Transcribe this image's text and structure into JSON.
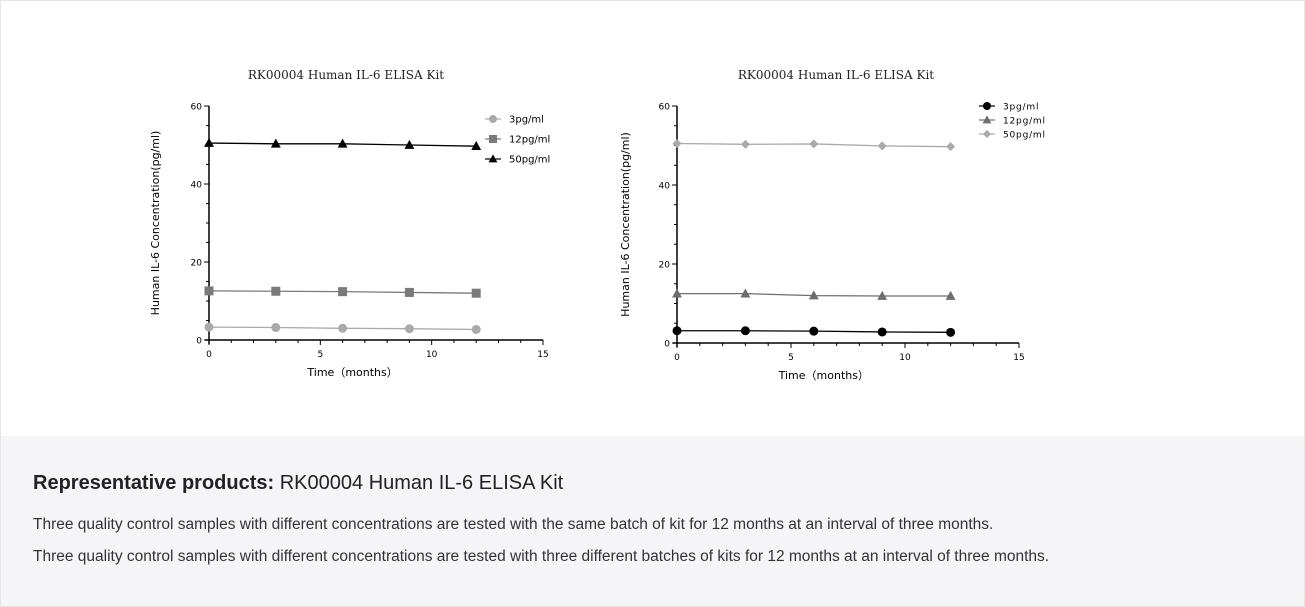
{
  "chart_data": [
    {
      "type": "line",
      "title": "RK00004 Human IL-6 ELISA Kit",
      "xlabel": "Time（months）",
      "ylabel": "Human IL-6 Concentration(pg/ml)",
      "xlim": [
        0,
        15
      ],
      "ylim": [
        0,
        60
      ],
      "xticks": [
        0,
        5,
        10,
        15
      ],
      "yticks": [
        0,
        20,
        40,
        60
      ],
      "grid": false,
      "legend": "top-right",
      "x": [
        0,
        3,
        6,
        9,
        12
      ],
      "series": [
        {
          "name": "3pg/ml",
          "values": [
            3.3,
            3.2,
            3.0,
            2.9,
            2.7
          ],
          "marker": "circle",
          "color": "#a9a9ae"
        },
        {
          "name": "12pg/ml",
          "values": [
            12.6,
            12.5,
            12.4,
            12.2,
            12.0
          ],
          "marker": "square",
          "color": "#7a7a7a"
        },
        {
          "name": "50pg/ml",
          "values": [
            50.5,
            50.3,
            50.3,
            50.0,
            49.7
          ],
          "marker": "triangle",
          "color": "#000000"
        }
      ]
    },
    {
      "type": "line",
      "title": "RK00004 Human IL-6 ELISA Kit",
      "xlabel": "Time（months）",
      "ylabel": "Human IL-6 Concentration(pg/ml)",
      "xlim": [
        0,
        15
      ],
      "ylim": [
        0,
        60
      ],
      "xticks": [
        0,
        5,
        10,
        15
      ],
      "yticks": [
        0,
        20,
        40,
        60
      ],
      "grid": false,
      "legend": "top-right",
      "x": [
        0,
        3,
        6,
        9,
        12
      ],
      "series": [
        {
          "name": "3pg/ml",
          "values": [
            3.1,
            3.1,
            3.0,
            2.8,
            2.7
          ],
          "marker": "circle",
          "color": "#000000"
        },
        {
          "name": "12pg/ml",
          "values": [
            12.5,
            12.5,
            12.0,
            11.9,
            11.9
          ],
          "marker": "triangle",
          "color": "#6d6d6d"
        },
        {
          "name": "50pg/ml",
          "values": [
            50.5,
            50.3,
            50.4,
            49.9,
            49.7
          ],
          "marker": "diamond",
          "color": "#a9a9ae"
        }
      ]
    }
  ],
  "info": {
    "heading": "Representative products:",
    "product": "RK00004 Human IL-6 ELISA Kit",
    "line1": "Three quality control samples with different concentrations are tested with the same batch of kit for 12 months at an interval of three months.",
    "line2": "Three quality control samples with different concentrations are tested with three different batches of kits for 12 months at an interval of three months."
  }
}
